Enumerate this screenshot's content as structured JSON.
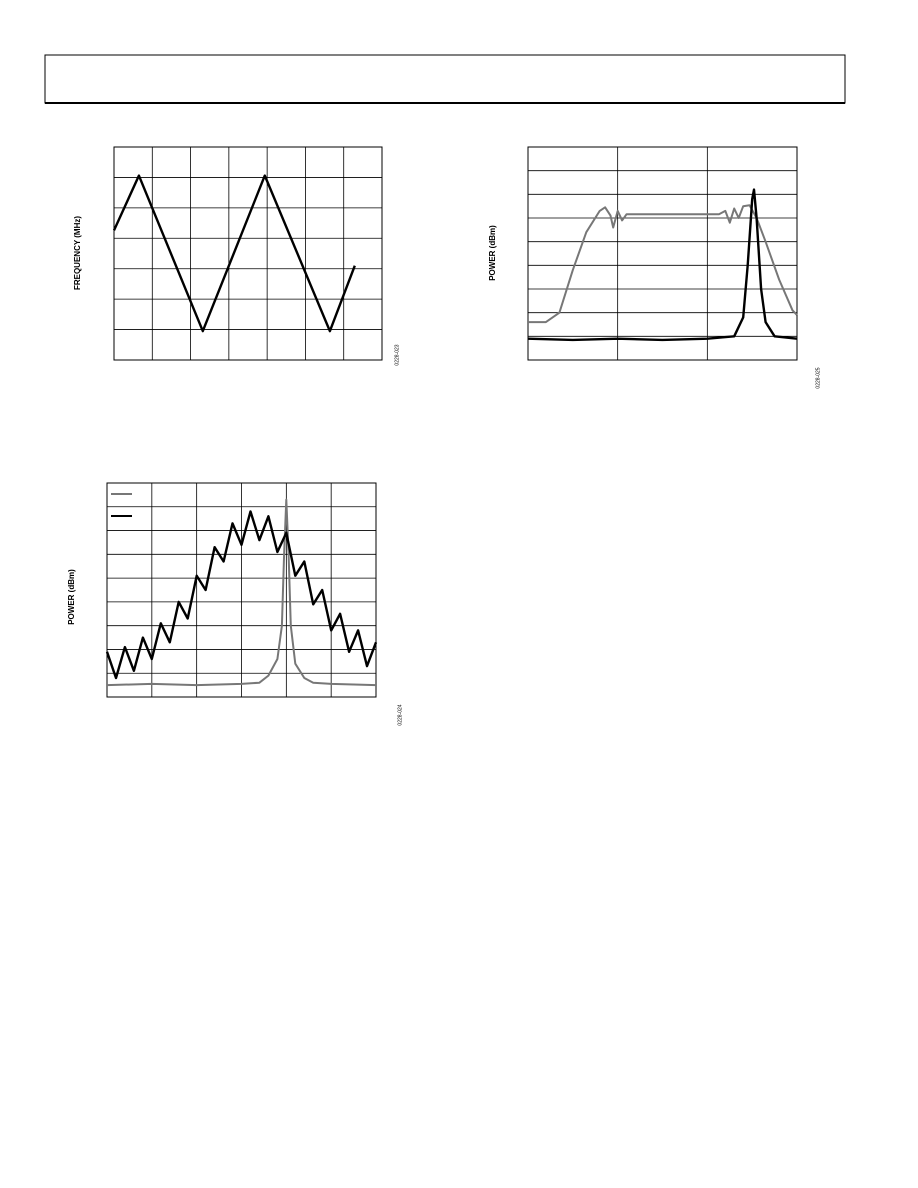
{
  "chart_data": [
    {
      "type": "line",
      "y_label": "FREQUENCY (MHz)",
      "figure_code": "0228-023",
      "grid": {
        "columns": 7,
        "rows": 7
      },
      "xlim": [
        0,
        7
      ],
      "ylim": [
        0,
        7
      ],
      "series": [
        {
          "color": "#000000",
          "x": [
            0,
            0.65,
            2.32,
            3.94,
            5.64,
            6.29
          ],
          "values": [
            4.26,
            6.06,
            0.95,
            6.06,
            0.95,
            3.1
          ]
        }
      ]
    },
    {
      "type": "line",
      "y_label": "POWER (dBm)",
      "figure_code": "0228-025",
      "grid": {
        "columns": 3,
        "rows": 9
      },
      "xlim": [
        0,
        3
      ],
      "ylim": [
        0,
        9
      ],
      "series": [
        {
          "color": "#777777",
          "x": [
            0,
            0.2,
            0.35,
            0.5,
            0.65,
            0.8,
            0.86,
            0.92,
            0.95,
            1.0,
            1.05,
            1.1,
            1.5,
            2.13,
            2.2,
            2.25,
            2.3,
            2.35,
            2.4,
            2.47,
            2.55,
            2.65,
            2.8,
            2.95,
            3.0
          ],
          "values": [
            1.6,
            1.6,
            2.0,
            3.8,
            5.4,
            6.3,
            6.45,
            6.1,
            5.6,
            6.3,
            5.9,
            6.16,
            6.16,
            6.16,
            6.3,
            5.8,
            6.4,
            6.0,
            6.5,
            6.54,
            6.0,
            5.0,
            3.4,
            2.1,
            1.9
          ]
        },
        {
          "color": "#000000",
          "x": [
            0,
            0.5,
            1.0,
            1.5,
            2.0,
            2.3,
            2.4,
            2.45,
            2.5,
            2.52,
            2.55,
            2.6,
            2.65,
            2.75,
            3.0
          ],
          "values": [
            0.9,
            0.85,
            0.9,
            0.85,
            0.9,
            1.0,
            1.8,
            4.0,
            6.8,
            7.2,
            6.0,
            3.0,
            1.6,
            1.0,
            0.9
          ]
        }
      ]
    },
    {
      "type": "line",
      "y_label": "POWER (dBm)",
      "figure_code": "0228-024",
      "grid": {
        "columns": 6,
        "rows": 9
      },
      "xlim": [
        0,
        6
      ],
      "ylim": [
        0,
        9
      ],
      "series": [
        {
          "color": "#777777",
          "x": [
            0,
            1,
            2,
            3,
            3.4,
            3.6,
            3.8,
            3.9,
            3.95,
            4.0,
            4.05,
            4.1,
            4.2,
            4.4,
            4.6,
            5,
            6
          ],
          "values": [
            0.5,
            0.55,
            0.5,
            0.55,
            0.6,
            0.9,
            1.6,
            3.0,
            6.0,
            8.3,
            6.0,
            3.0,
            1.4,
            0.8,
            0.6,
            0.55,
            0.5
          ]
        },
        {
          "color": "#000000",
          "x": [
            0,
            0.2,
            0.4,
            0.6,
            0.8,
            1.0,
            1.2,
            1.4,
            1.6,
            1.8,
            2.0,
            2.2,
            2.4,
            2.6,
            2.8,
            3.0,
            3.2,
            3.4,
            3.6,
            3.8,
            4.0,
            4.2,
            4.4,
            4.6,
            4.8,
            5.0,
            5.2,
            5.4,
            5.6,
            5.8,
            6.0
          ],
          "values": [
            1.9,
            0.8,
            2.1,
            1.1,
            2.5,
            1.6,
            3.1,
            2.3,
            4.0,
            3.3,
            5.1,
            4.5,
            6.3,
            5.7,
            7.3,
            6.4,
            7.8,
            6.6,
            7.6,
            6.1,
            6.9,
            5.1,
            5.7,
            3.9,
            4.5,
            2.8,
            3.5,
            1.9,
            2.8,
            1.3,
            2.3
          ]
        }
      ]
    }
  ]
}
